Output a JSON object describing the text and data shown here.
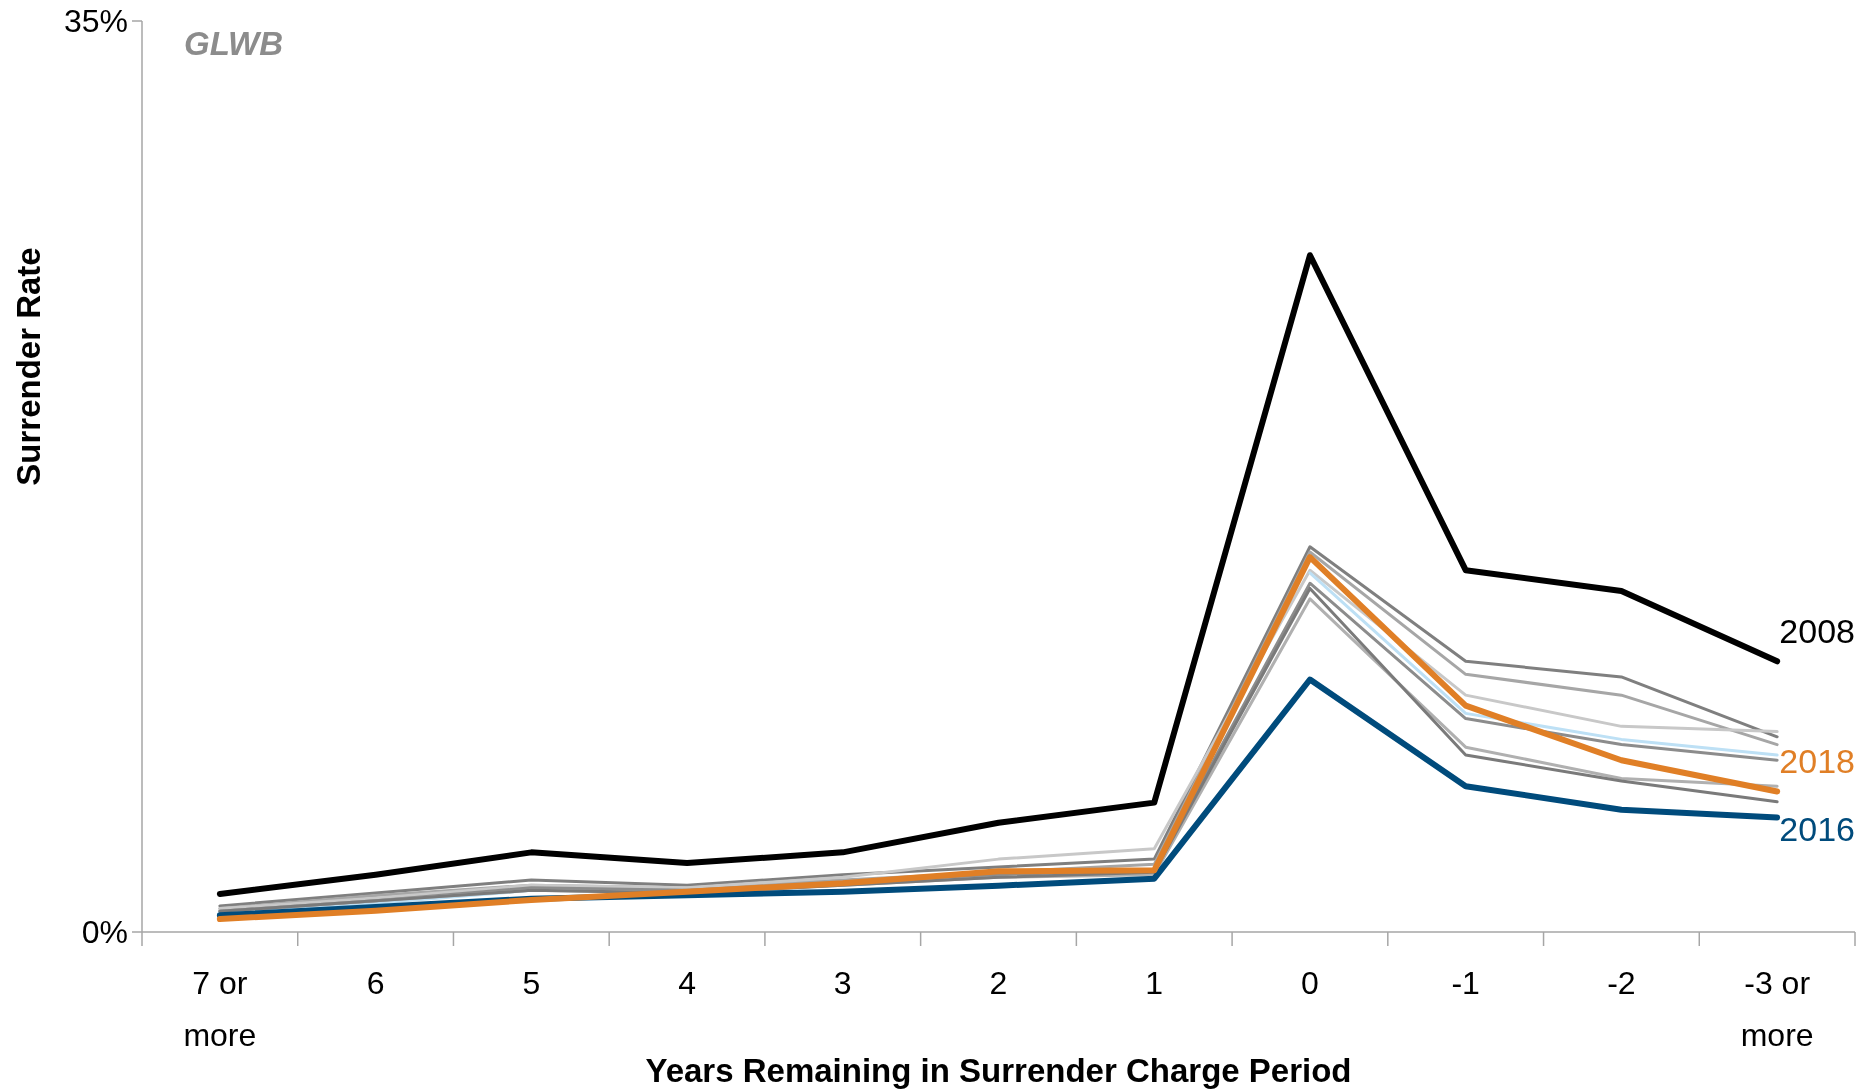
{
  "chart_data": {
    "type": "line",
    "title": "GLWB",
    "xlabel": "Years Remaining in Surrender Charge Period",
    "ylabel": "Surrender Rate",
    "categories": [
      "7 or more",
      "6",
      "5",
      "4",
      "3",
      "2",
      "1",
      "0",
      "-1",
      "-2",
      "-3 or more"
    ],
    "ylim": [
      0,
      35
    ],
    "yticks": [
      {
        "value": 0,
        "label": "0%"
      },
      {
        "value": 35,
        "label": "35%"
      }
    ],
    "grid": false,
    "marker": "none",
    "line_style": "solid",
    "series": [
      {
        "color": "#7f7f7f",
        "values": [
          1.0,
          1.5,
          2.0,
          1.8,
          2.2,
          2.5,
          2.8,
          14.8,
          10.4,
          9.8,
          7.5
        ]
      },
      {
        "color": "#a6a6a6",
        "values": [
          0.9,
          1.4,
          1.8,
          1.7,
          2.0,
          2.3,
          2.6,
          14.6,
          9.9,
          9.1,
          7.2
        ]
      },
      {
        "color": "#c8c8c8",
        "values": [
          0.9,
          1.3,
          1.8,
          1.7,
          2.1,
          2.8,
          3.2,
          13.9,
          9.1,
          7.9,
          7.7
        ]
      },
      {
        "color": "#bde0f5",
        "values": [
          0.7,
          1.1,
          1.6,
          null,
          null,
          null,
          null,
          13.8,
          8.4,
          7.4,
          6.8
        ]
      },
      {
        "color": "#8c8c8c",
        "values": [
          0.8,
          1.2,
          1.7,
          1.6,
          1.9,
          2.2,
          2.4,
          13.4,
          8.2,
          7.2,
          6.6
        ]
      },
      {
        "color": "#b0b0b0",
        "values": [
          0.8,
          1.2,
          1.6,
          1.5,
          1.8,
          2.1,
          2.2,
          12.8,
          7.1,
          5.9,
          5.6
        ]
      },
      {
        "color": "#7a7a7a",
        "values": [
          0.8,
          1.2,
          1.6,
          1.5,
          1.8,
          2.1,
          2.3,
          13.2,
          6.8,
          5.8,
          5.0
        ]
      },
      {
        "name": "2008",
        "color": "#000000",
        "values": [
          1.46,
          2.2,
          3.06,
          2.65,
          3.06,
          4.2,
          4.97,
          26.0,
          13.9,
          13.1,
          10.4
        ]
      },
      {
        "name": "2016",
        "color": "#004b7c",
        "values": [
          0.64,
          0.96,
          1.28,
          1.41,
          1.55,
          1.78,
          2.05,
          9.7,
          5.6,
          4.7,
          4.4
        ]
      },
      {
        "name": "2018",
        "color": "#e07f26",
        "values": [
          0.5,
          0.82,
          1.23,
          1.55,
          1.87,
          2.33,
          2.37,
          14.4,
          8.7,
          6.6,
          5.4
        ]
      }
    ]
  }
}
